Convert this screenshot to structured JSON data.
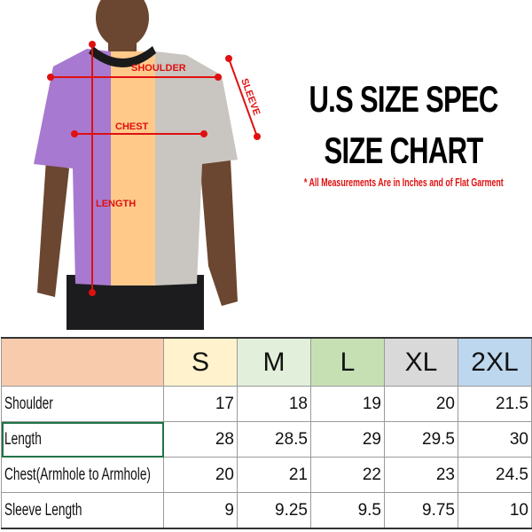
{
  "title_line1": "U.S SIZE SPEC",
  "title_line2": "SIZE CHART",
  "note": "* All Measurements Are in Inches and of Flat Garment",
  "diagram_labels": {
    "shoulder": "SHOULDER",
    "chest": "CHEST",
    "length": "LENGTH",
    "sleeve": "SLEEVE"
  },
  "colors": {
    "measure_red": "#e01010",
    "header_blank": "#f8cbad",
    "S": "#fff2cc",
    "M": "#e2efda",
    "L": "#c6e0b4",
    "XL": "#d9d9d9",
    "2XL": "#bdd7ee",
    "shirt_purple": "#a779d0",
    "shirt_peach": "#ffc98a",
    "shirt_grey": "#c9c5c0"
  },
  "table": {
    "sizes": [
      "S",
      "M",
      "L",
      "XL",
      "2XL"
    ],
    "rows": [
      {
        "label": "Shoulder",
        "values": [
          "17",
          "18",
          "19",
          "20",
          "21.5"
        ]
      },
      {
        "label": "Length",
        "values": [
          "28",
          "28.5",
          "29",
          "29.5",
          "30"
        ]
      },
      {
        "label": "Chest(Armhole to Armhole)",
        "values": [
          "20",
          "21",
          "22",
          "23",
          "24.5"
        ]
      },
      {
        "label": "Sleeve Length",
        "values": [
          "9",
          "9.25",
          "9.5",
          "9.75",
          "10"
        ]
      }
    ]
  }
}
